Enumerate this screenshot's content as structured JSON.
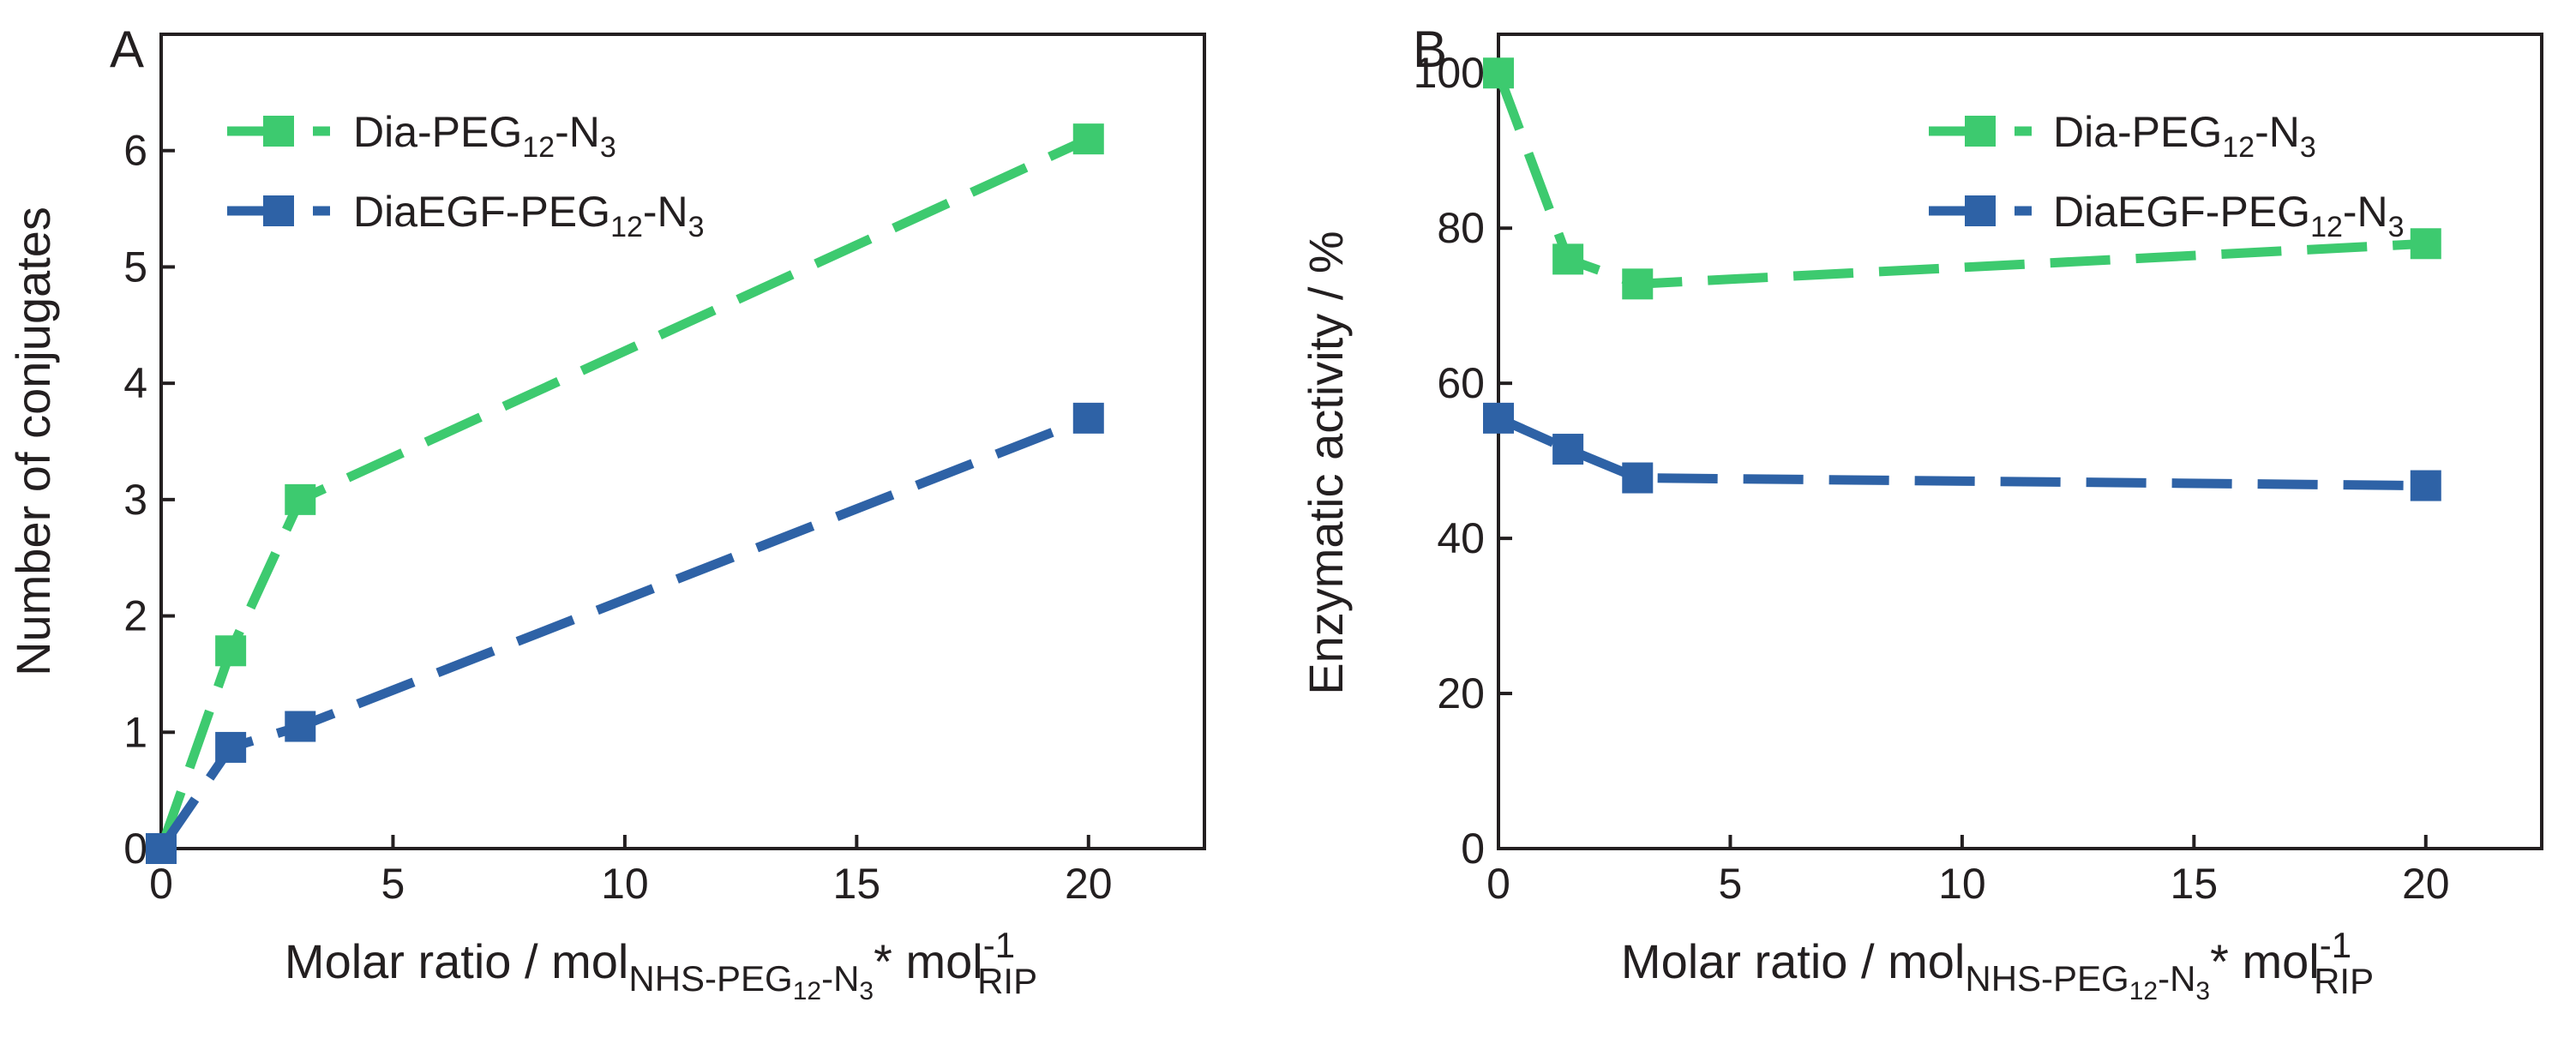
{
  "figure": {
    "x_axis_title": {
      "prefix": "Molar ratio / mol",
      "sub1": "NHS-PEG",
      "sub1_sub": "12",
      "sub1_mid": "-N",
      "sub1_sub2": "3",
      "middle": "* mol",
      "sup": "-1",
      "sub2": "RIP"
    }
  },
  "legend": {
    "green": {
      "prefix": "Dia-PEG",
      "sub": "12",
      "mid": "-N",
      "sub2": "3"
    },
    "blue": {
      "prefix": "DiaEGF-PEG",
      "sub": "12",
      "mid": "-N",
      "sub2": "3"
    }
  },
  "colors": {
    "green": "#3dca6f",
    "blue": "#2e62a6",
    "axis": "#231f20"
  },
  "chart_data": [
    {
      "panel": "A",
      "type": "line",
      "ylabel": "Number of conjugates",
      "xlim": [
        0,
        22.5
      ],
      "ylim": [
        0,
        7
      ],
      "xticks": [
        0,
        5,
        10,
        15,
        20
      ],
      "yticks": [
        0,
        1,
        2,
        3,
        4,
        5,
        6
      ],
      "legend_position": "top-left",
      "series": [
        {
          "name": "Dia-PEG12-N3",
          "color": "green",
          "x": [
            0,
            1.5,
            3,
            20
          ],
          "y": [
            0,
            1.7,
            3.0,
            6.1
          ]
        },
        {
          "name": "DiaEGF-PEG12-N3",
          "color": "blue",
          "x": [
            0,
            1.5,
            3,
            20
          ],
          "y": [
            0,
            0.87,
            1.05,
            3.7
          ]
        }
      ]
    },
    {
      "panel": "B",
      "type": "line",
      "ylabel": "Enzymatic activity / %",
      "xlim": [
        0,
        22.5
      ],
      "ylim": [
        0,
        105
      ],
      "xticks": [
        0,
        5,
        10,
        15,
        20
      ],
      "yticks": [
        0,
        20,
        40,
        60,
        80,
        100
      ],
      "legend_position": "top-right",
      "series": [
        {
          "name": "Dia-PEG12-N3",
          "color": "green",
          "x": [
            0,
            1.5,
            3,
            20
          ],
          "y": [
            100,
            76,
            72.8,
            78
          ]
        },
        {
          "name": "DiaEGF-PEG12-N3",
          "color": "blue",
          "x": [
            0,
            1.5,
            3,
            20
          ],
          "y": [
            55.5,
            51.5,
            47.8,
            46.8
          ]
        }
      ]
    }
  ]
}
